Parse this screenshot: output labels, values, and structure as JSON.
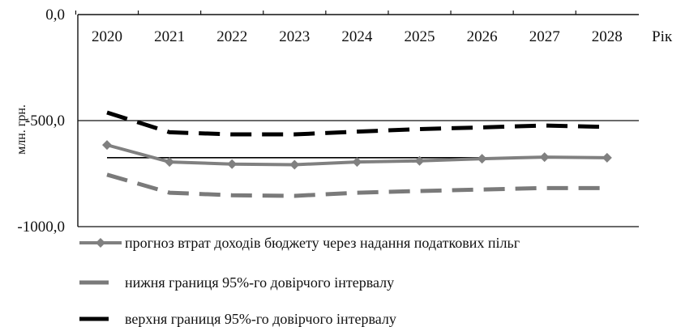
{
  "chart_data": {
    "type": "line",
    "x": [
      "2020",
      "2021",
      "2022",
      "2023",
      "2024",
      "2025",
      "2026",
      "2027",
      "2028"
    ],
    "xlabel": "Рік",
    "ylabel": "млн. грн.",
    "ylim": [
      -1000,
      0
    ],
    "yticks": [
      {
        "value": 0,
        "label": "0,0"
      },
      {
        "value": -500,
        "label": "-500,0"
      },
      {
        "value": -1000,
        "label": "-1000,0"
      }
    ],
    "grid": "horizontal at tick values",
    "reference_line": {
      "value": -675
    },
    "x_axis_position": "top",
    "legend_position": "bottom",
    "series": [
      {
        "name": "прогноз втрат доходів бюджету через надання податкових пільг",
        "style": "solid-diamond",
        "color": "#808080",
        "values": [
          -615,
          -695,
          -705,
          -708,
          -695,
          -690,
          -680,
          -672,
          -675
        ]
      },
      {
        "name": "нижня границя 95%-го довірчого інтервалу",
        "style": "dashed",
        "color": "#7a7a7a",
        "values": [
          -755,
          -840,
          -852,
          -855,
          -840,
          -832,
          -825,
          -818,
          -818
        ]
      },
      {
        "name": "верхня границя 95%-го довірчого інтервалу",
        "style": "dashed",
        "color": "#000000",
        "values": [
          -462,
          -555,
          -565,
          -565,
          -552,
          -540,
          -532,
          -523,
          -530
        ]
      }
    ]
  }
}
